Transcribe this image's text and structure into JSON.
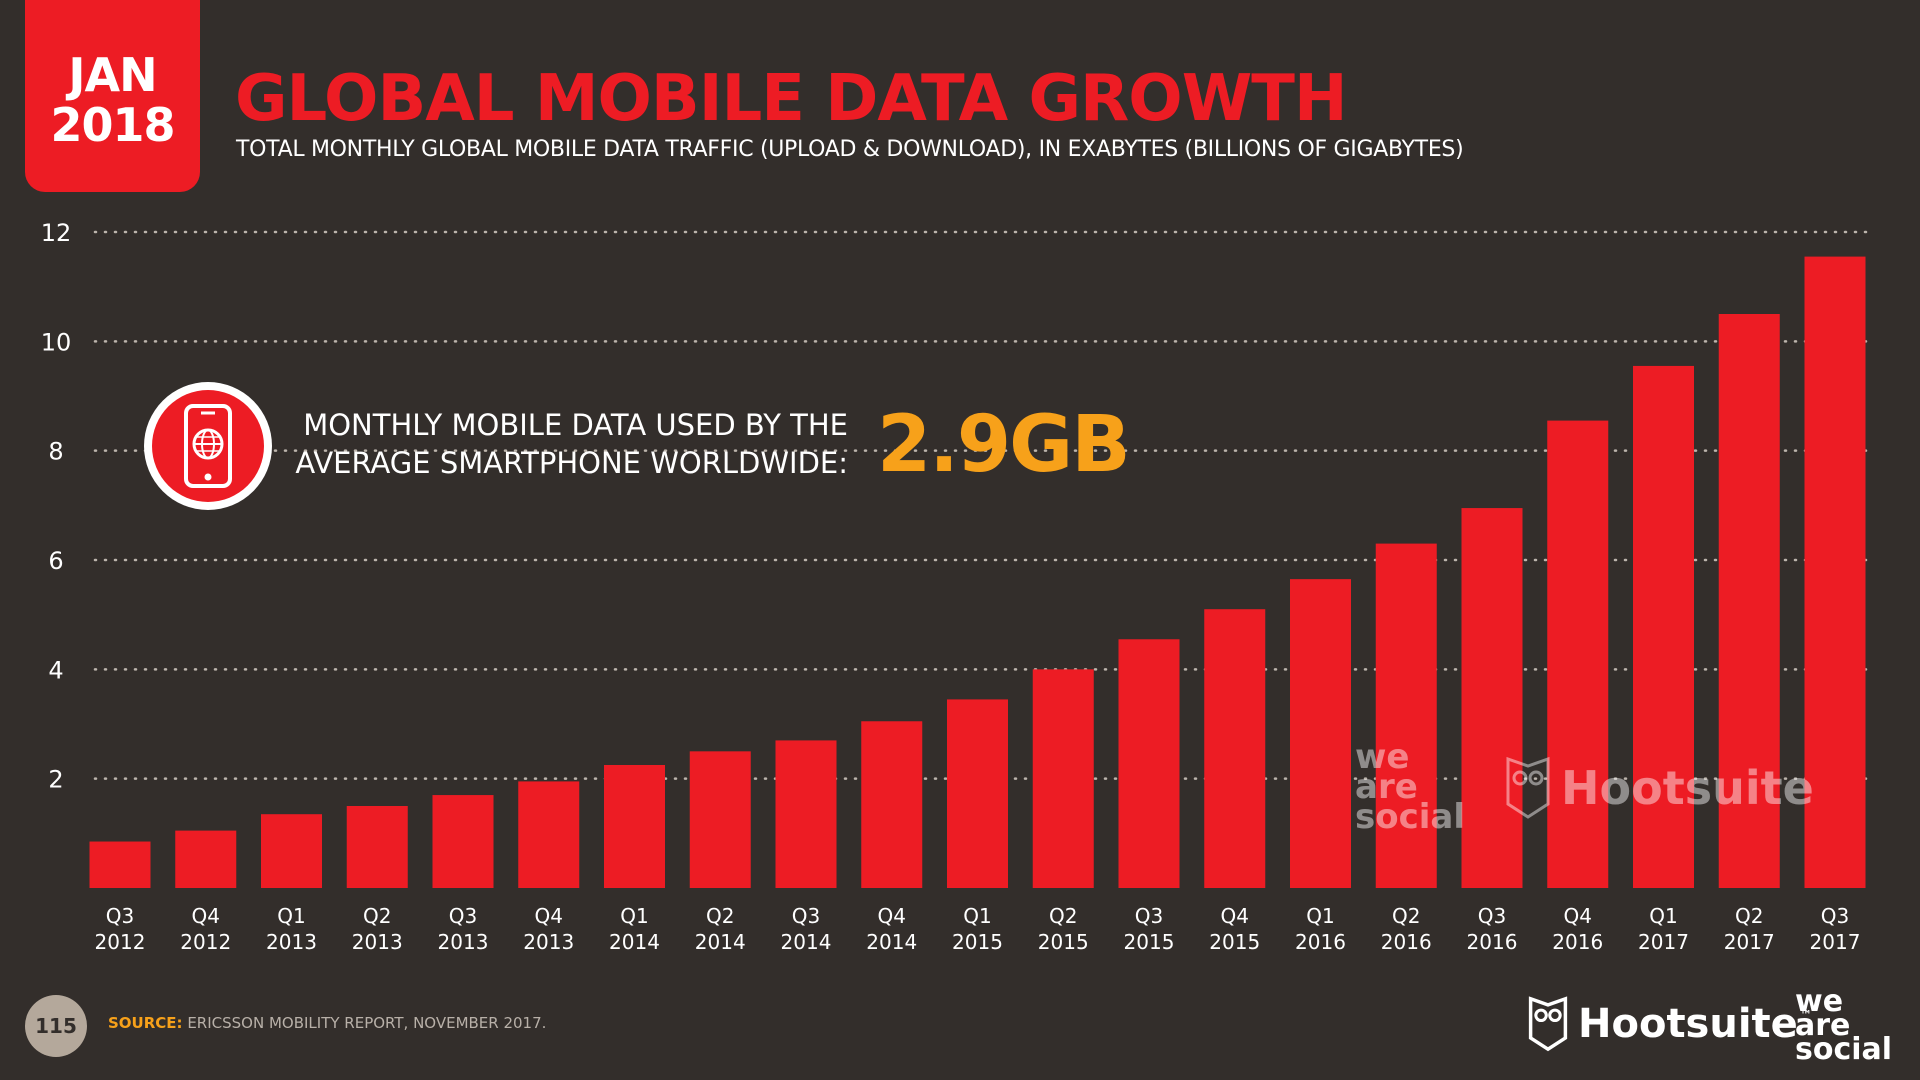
{
  "badge": {
    "month": "JAN",
    "year": "2018"
  },
  "header": {
    "title": "GLOBAL MOBILE DATA GROWTH",
    "subtitle": "TOTAL MONTHLY GLOBAL MOBILE DATA TRAFFIC (UPLOAD & DOWNLOAD), IN EXABYTES (BILLIONS OF GIGABYTES)"
  },
  "callout": {
    "icon": "smartphone-globe-icon",
    "line1": "MONTHLY MOBILE DATA USED BY THE",
    "line2": "AVERAGE SMARTPHONE WORLDWIDE:",
    "value": "2.9GB"
  },
  "watermark": {
    "we": "we",
    "are": "are",
    "social": "social",
    "hootsuite": "Hootsuite"
  },
  "footer": {
    "page": "115",
    "source_label": "SOURCE:",
    "source_text": " ERICSSON MOBILITY REPORT, NOVEMBER 2017.",
    "logo_hootsuite": "Hootsuite",
    "logo_tm": "™",
    "logo_we": "we",
    "logo_are": "are",
    "logo_social": "social"
  },
  "colors": {
    "bar": "#ed1c24",
    "accent": "#f7a11a",
    "background": "#332e2b",
    "grid": "#bdb5ad"
  },
  "chart_data": {
    "type": "bar",
    "categories": [
      [
        "Q3",
        "2012"
      ],
      [
        "Q4",
        "2012"
      ],
      [
        "Q1",
        "2013"
      ],
      [
        "Q2",
        "2013"
      ],
      [
        "Q3",
        "2013"
      ],
      [
        "Q4",
        "2013"
      ],
      [
        "Q1",
        "2014"
      ],
      [
        "Q2",
        "2014"
      ],
      [
        "Q3",
        "2014"
      ],
      [
        "Q4",
        "2014"
      ],
      [
        "Q1",
        "2015"
      ],
      [
        "Q2",
        "2015"
      ],
      [
        "Q3",
        "2015"
      ],
      [
        "Q4",
        "2015"
      ],
      [
        "Q1",
        "2016"
      ],
      [
        "Q2",
        "2016"
      ],
      [
        "Q3",
        "2016"
      ],
      [
        "Q4",
        "2016"
      ],
      [
        "Q1",
        "2017"
      ],
      [
        "Q2",
        "2017"
      ],
      [
        "Q3",
        "2017"
      ]
    ],
    "values": [
      0.85,
      1.05,
      1.35,
      1.5,
      1.7,
      1.95,
      2.25,
      2.5,
      2.7,
      3.05,
      3.45,
      4.0,
      4.55,
      5.1,
      5.65,
      6.3,
      6.95,
      8.55,
      9.55,
      10.5,
      11.55
    ],
    "yticks": [
      2,
      4,
      6,
      8,
      10,
      12
    ],
    "ylim": [
      0,
      12
    ],
    "grid": true
  }
}
